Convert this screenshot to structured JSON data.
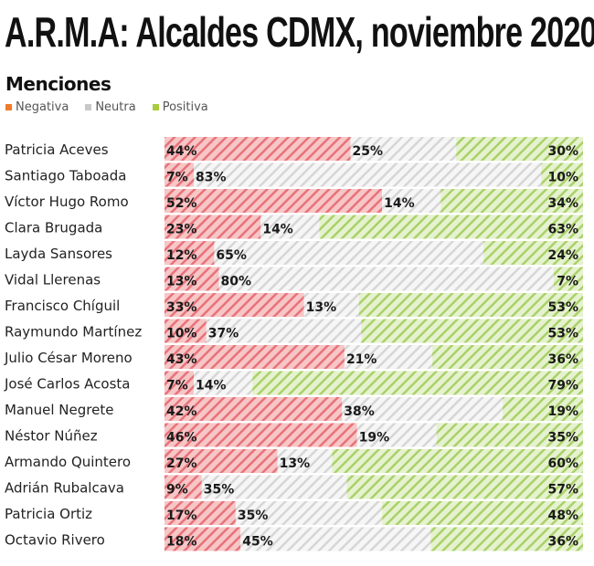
{
  "chart_data": {
    "type": "bar",
    "stacked": true,
    "orientation": "horizontal",
    "title": "A.R.M.A: Alcaldes CDMX, noviembre 2020",
    "subtitle": "Menciones",
    "legend_position": "top-left",
    "categories": [
      "Patricia Aceves",
      "Santiago Taboada",
      "Víctor Hugo Romo",
      "Clara Brugada",
      "Layda Sansores",
      "Vidal Llerenas",
      "Francisco Chíguil",
      "Raymundo Martínez",
      "Julio César Moreno",
      "José Carlos Acosta",
      "Manuel Negrete",
      "Néstor Núñez",
      "Armando Quintero",
      "Adrián Rubalcava",
      "Patricia Ortiz",
      "Octavio Rivero"
    ],
    "series": [
      {
        "name": "Negativa",
        "color": "#f07b2a",
        "bar_fill": "#f7c6c6",
        "stripe": "#e8727a",
        "values": [
          44,
          7,
          52,
          23,
          12,
          13,
          33,
          10,
          43,
          7,
          42,
          46,
          27,
          9,
          17,
          18
        ]
      },
      {
        "name": "Neutra",
        "color": "#c8c8c8",
        "bar_fill": "#f6f6f6",
        "stripe": "#d6d6d6",
        "values": [
          25,
          83,
          14,
          14,
          65,
          80,
          13,
          37,
          21,
          14,
          38,
          19,
          13,
          35,
          35,
          45
        ]
      },
      {
        "name": "Positiva",
        "color": "#a8cc3c",
        "bar_fill": "#e6f2cf",
        "stripe": "#a9d16a",
        "values": [
          30,
          10,
          34,
          63,
          24,
          7,
          53,
          53,
          36,
          79,
          19,
          35,
          60,
          57,
          48,
          36
        ]
      }
    ],
    "value_suffix": "%",
    "grid": false
  }
}
